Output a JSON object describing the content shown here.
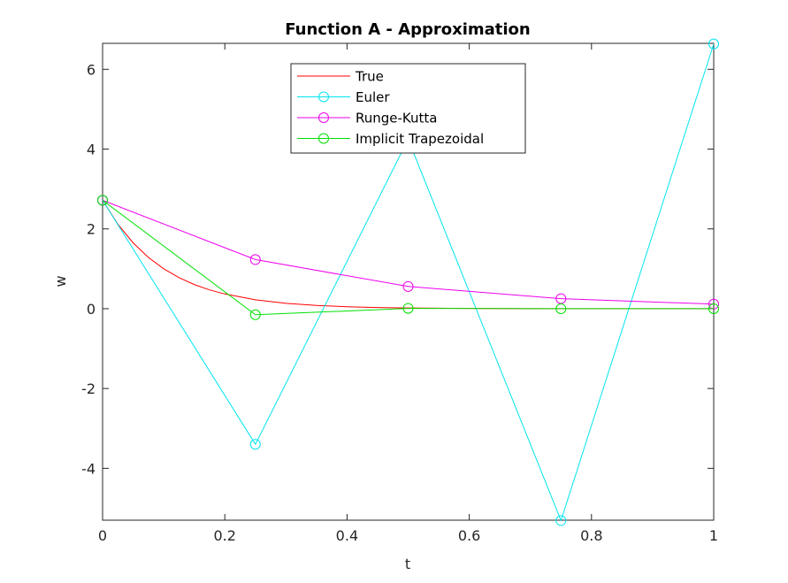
{
  "chart_data": {
    "type": "line",
    "title": "Function A - Approximation",
    "xlabel": "t",
    "ylabel": "w",
    "xlim": [
      0,
      1
    ],
    "ylim": [
      -5.3,
      6.65
    ],
    "xticks": [
      0,
      0.2,
      0.4,
      0.6,
      0.8,
      1
    ],
    "xtick_labels": [
      "0",
      "0.2",
      "0.4",
      "0.6",
      "0.8",
      "1"
    ],
    "yticks": [
      -4,
      -2,
      0,
      2,
      4,
      6
    ],
    "ytick_labels": [
      "-4",
      "-2",
      "0",
      "2",
      "4",
      "6"
    ],
    "grid": false,
    "legend_position": "top-center",
    "series": [
      {
        "name": "True",
        "color": "#ff0000",
        "marker": "none",
        "x": [
          0,
          0.025,
          0.05,
          0.075,
          0.1,
          0.125,
          0.15,
          0.175,
          0.2,
          0.25,
          0.3,
          0.35,
          0.4,
          0.45,
          0.5,
          0.55,
          0.6,
          0.65,
          0.7,
          0.75,
          0.8,
          0.85,
          0.9,
          0.95,
          1
        ],
        "y": [
          2.718,
          2.117,
          1.649,
          1.284,
          1.0,
          0.779,
          0.607,
          0.472,
          0.368,
          0.223,
          0.135,
          0.082,
          0.05,
          0.03,
          0.018,
          0.011,
          0.007,
          0.004,
          0.002,
          0.001,
          0.001,
          0.0,
          0.0,
          0.0,
          0.0
        ]
      },
      {
        "name": "Euler",
        "color": "#00e5ee",
        "marker": "circle",
        "x": [
          0,
          0.25,
          0.5,
          0.75,
          1
        ],
        "y": [
          2.718,
          -3.398,
          4.247,
          -5.309,
          6.636
        ]
      },
      {
        "name": "Runge-Kutta",
        "color": "#ee00ee",
        "marker": "circle",
        "x": [
          0,
          0.25,
          0.5,
          0.75,
          1
        ],
        "y": [
          2.718,
          1.231,
          0.557,
          0.252,
          0.114
        ]
      },
      {
        "name": "Implicit Trapezoidal",
        "color": "#00e000",
        "marker": "circle",
        "x": [
          0,
          0.25,
          0.5,
          0.75,
          1
        ],
        "y": [
          2.718,
          -0.151,
          0.008,
          0.0,
          0.0
        ]
      }
    ]
  }
}
